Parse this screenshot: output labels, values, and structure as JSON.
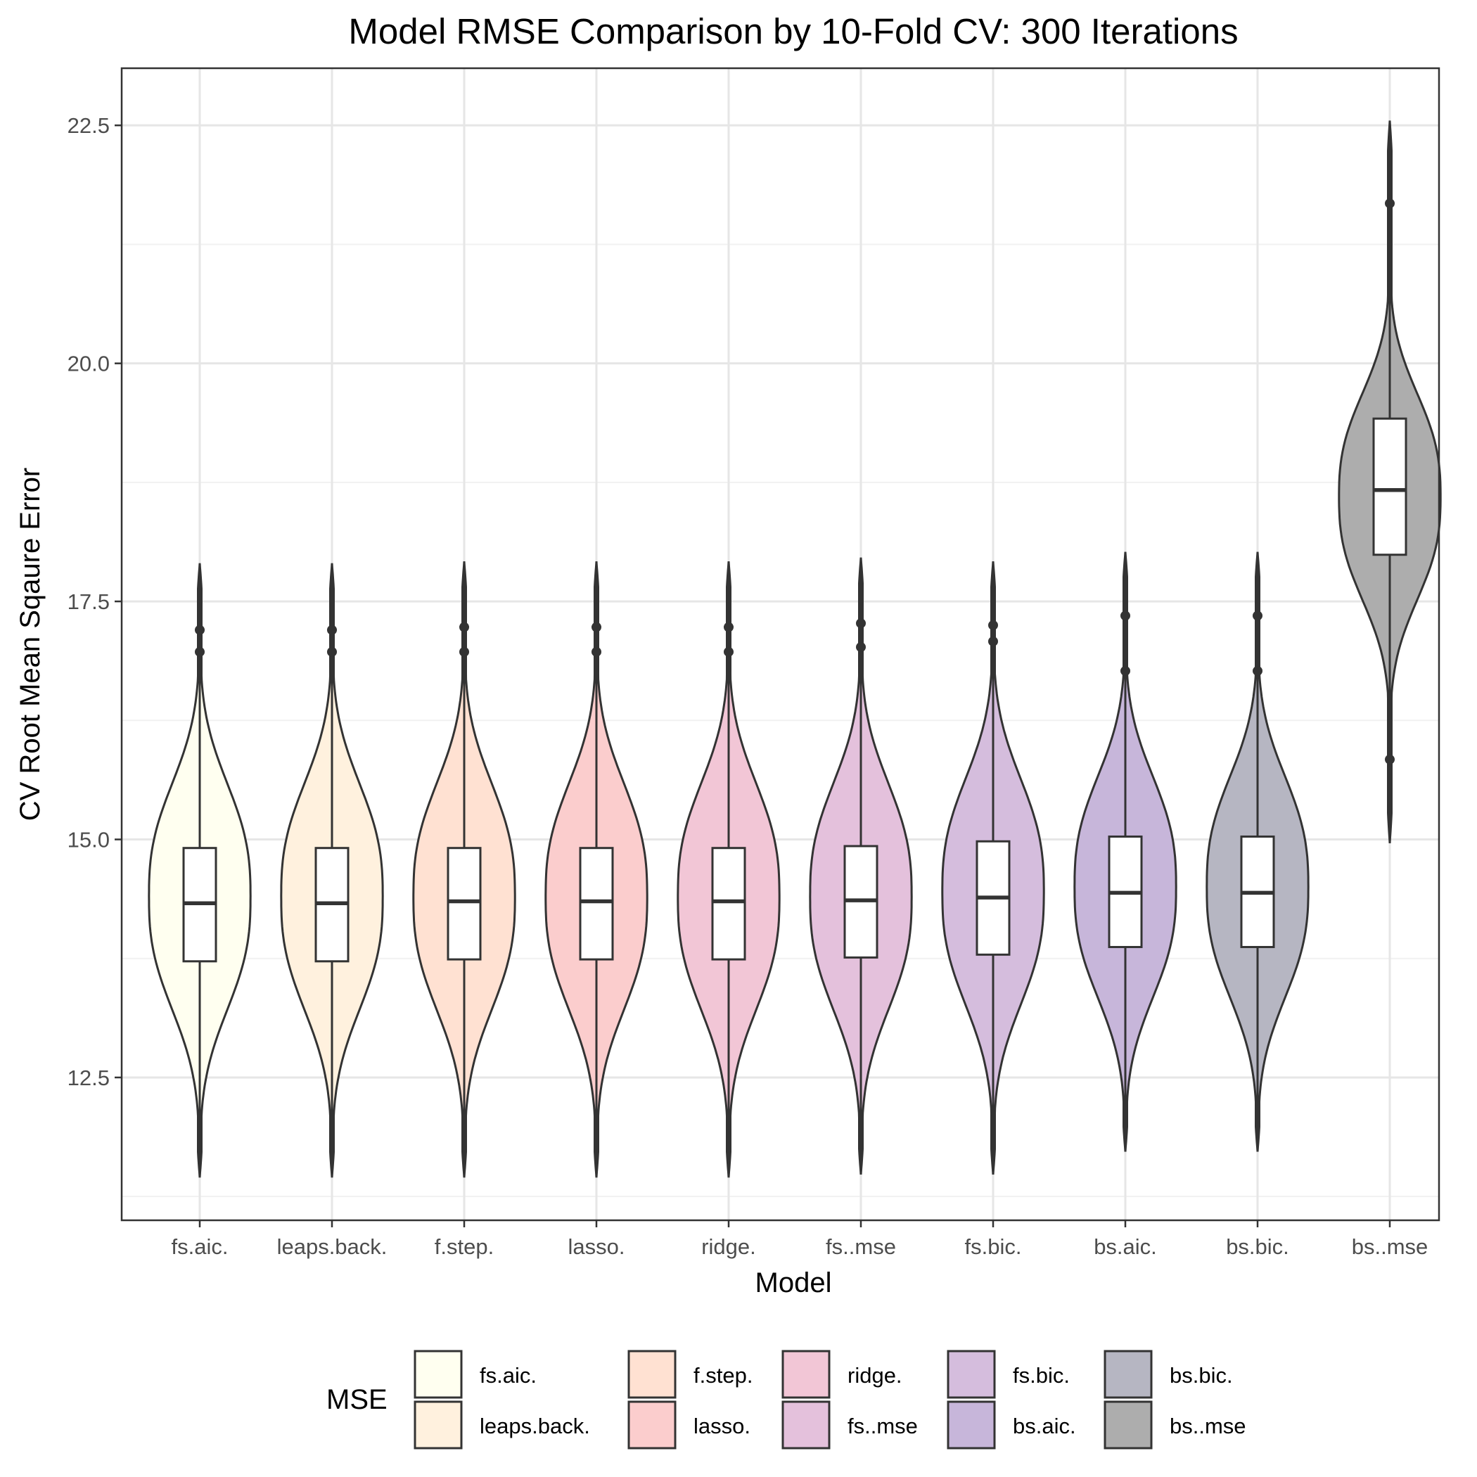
{
  "chart_data": {
    "type": "violin",
    "title": "Model RMSE Comparison by 10-Fold CV: 300 Iterations",
    "xlabel": "Model",
    "ylabel": "CV Root Mean Sqaure Error",
    "ylim": [
      11.0,
      23.1
    ],
    "y_ticks": [
      12.5,
      15.0,
      17.5,
      20.0,
      22.5
    ],
    "y_tick_labels": [
      "12.5",
      "15.0",
      "17.5",
      "20.0",
      "22.5"
    ],
    "grid": true,
    "legend": {
      "title": "MSE",
      "position": "bottom"
    },
    "series": [
      {
        "name": "fs.aic.",
        "color": "#FFFFF0",
        "min": 11.45,
        "q1": 13.72,
        "median": 14.33,
        "q3": 14.91,
        "whisker_high": 17.9,
        "outliers": [
          16.97,
          17.2
        ],
        "center": 14.4,
        "width": 0.88,
        "spread": 2.2
      },
      {
        "name": "leaps.back.",
        "color": "#FFF1DE",
        "min": 11.45,
        "q1": 13.72,
        "median": 14.33,
        "q3": 14.91,
        "whisker_high": 17.9,
        "outliers": [
          16.97,
          17.2
        ],
        "center": 14.4,
        "width": 0.88,
        "spread": 2.2
      },
      {
        "name": "f.step.",
        "color": "#FFE1D2",
        "min": 11.45,
        "q1": 13.74,
        "median": 14.35,
        "q3": 14.91,
        "whisker_high": 17.92,
        "outliers": [
          16.97,
          17.23
        ],
        "center": 14.4,
        "width": 0.88,
        "spread": 2.2
      },
      {
        "name": "lasso.",
        "color": "#FBCDCD",
        "min": 11.45,
        "q1": 13.74,
        "median": 14.35,
        "q3": 14.91,
        "whisker_high": 17.92,
        "outliers": [
          16.97,
          17.23
        ],
        "center": 14.4,
        "width": 0.88,
        "spread": 2.2
      },
      {
        "name": "ridge.",
        "color": "#F2C6D6",
        "min": 11.45,
        "q1": 13.74,
        "median": 14.35,
        "q3": 14.91,
        "whisker_high": 17.92,
        "outliers": [
          16.97,
          17.23
        ],
        "center": 14.4,
        "width": 0.88,
        "spread": 2.2
      },
      {
        "name": "fs..mse",
        "color": "#E4C1DC",
        "min": 11.48,
        "q1": 13.76,
        "median": 14.36,
        "q3": 14.93,
        "whisker_high": 17.96,
        "outliers": [
          17.02,
          17.27
        ],
        "center": 14.4,
        "width": 0.88,
        "spread": 2.2
      },
      {
        "name": "fs.bic.",
        "color": "#D5BDDD",
        "min": 11.48,
        "q1": 13.79,
        "median": 14.39,
        "q3": 14.98,
        "whisker_high": 17.92,
        "outliers": [
          17.08,
          17.25
        ],
        "center": 14.45,
        "width": 0.88,
        "spread": 2.2
      },
      {
        "name": "bs.aic.",
        "color": "#C7B6DA",
        "min": 11.72,
        "q1": 13.87,
        "median": 14.44,
        "q3": 15.03,
        "whisker_high": 18.02,
        "outliers": [
          16.77,
          17.35
        ],
        "center": 14.5,
        "width": 0.88,
        "spread": 2.15
      },
      {
        "name": "bs.bic.",
        "color": "#B6B6C2",
        "min": 11.72,
        "q1": 13.87,
        "median": 14.44,
        "q3": 15.03,
        "whisker_high": 18.02,
        "outliers": [
          16.77,
          17.35
        ],
        "center": 14.5,
        "width": 0.88,
        "spread": 2.15
      },
      {
        "name": "bs..mse",
        "color": "#ADADAD",
        "min": 14.96,
        "q1": 17.99,
        "median": 18.67,
        "q3": 19.42,
        "whisker_high": 22.55,
        "outliers": [
          15.84,
          21.68
        ],
        "center": 18.6,
        "width": 0.88,
        "spread": 2.0
      }
    ]
  }
}
